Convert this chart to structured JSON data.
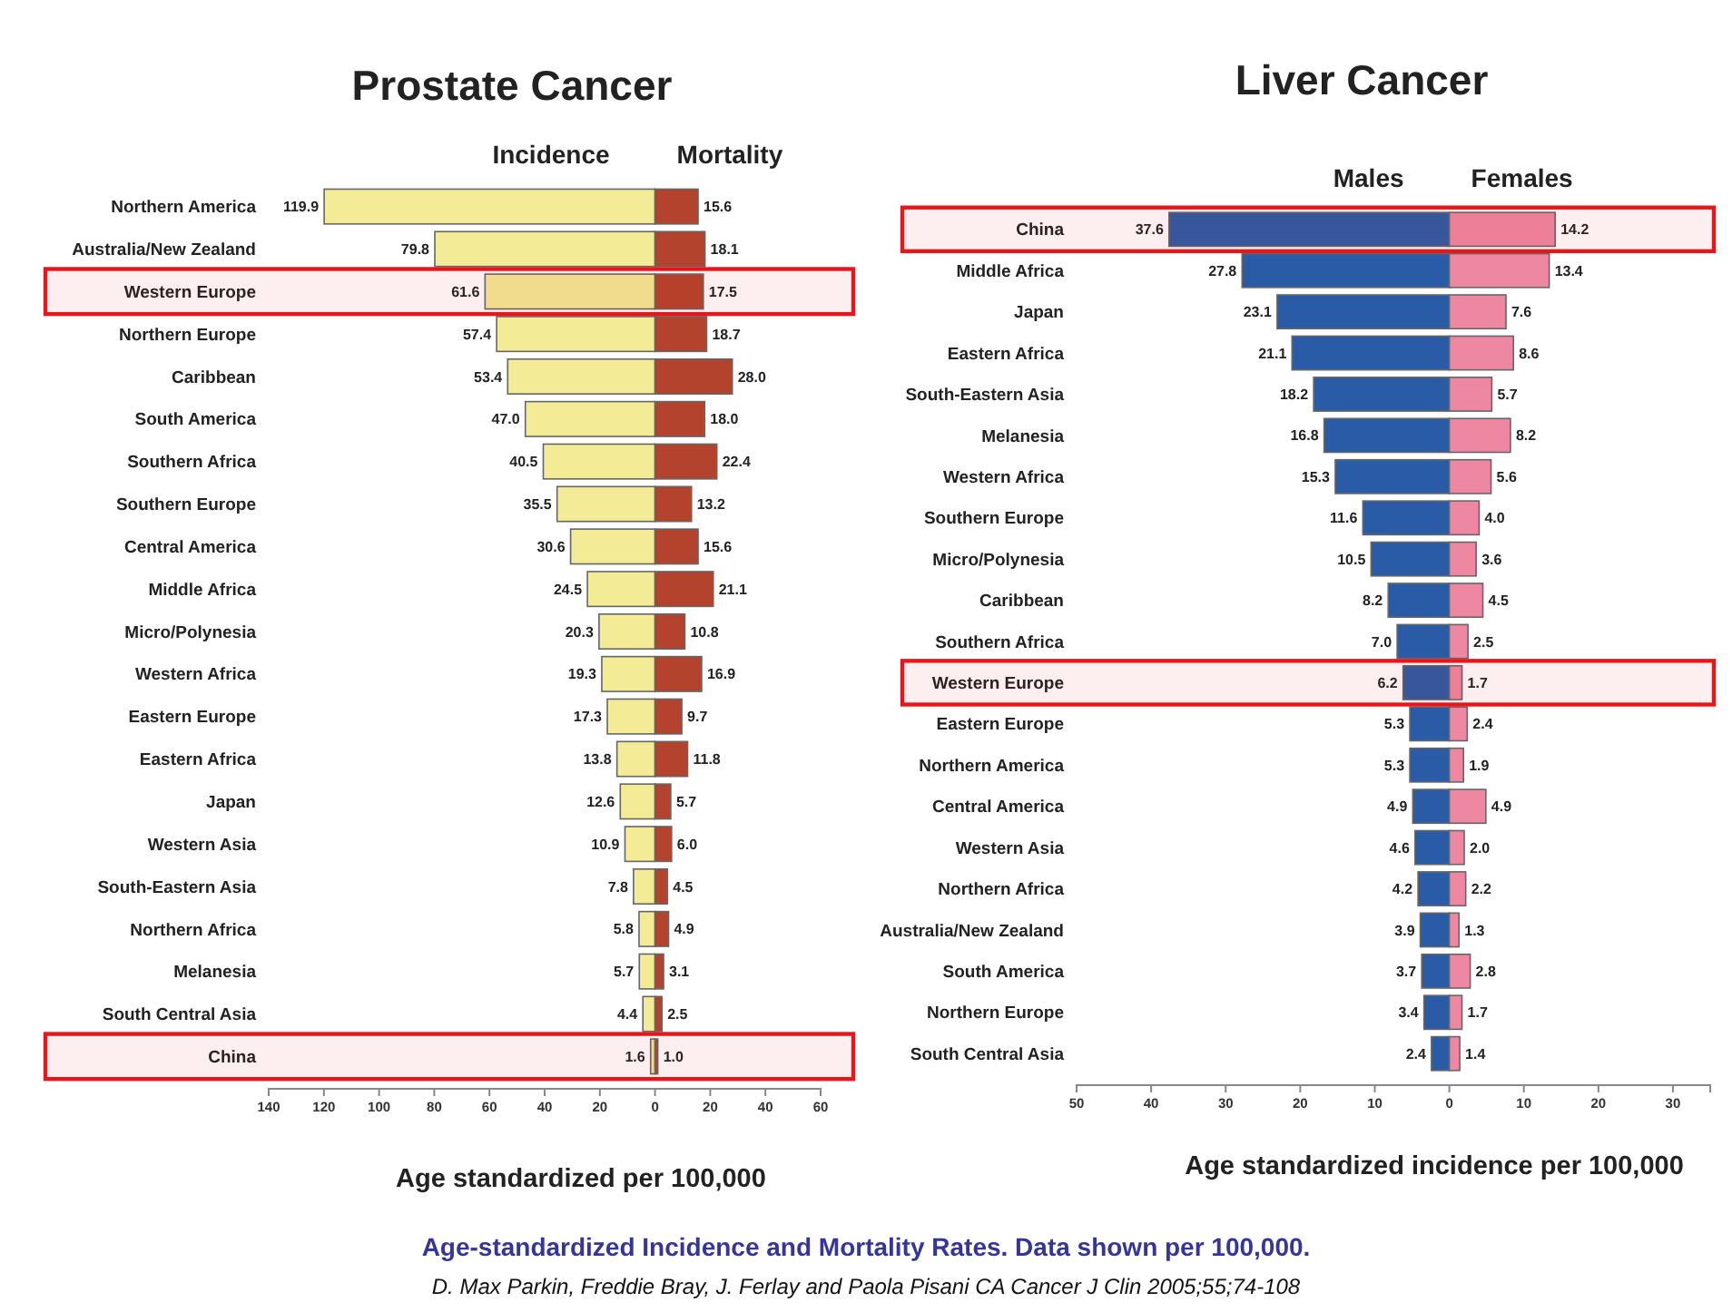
{
  "chart_data": [
    {
      "type": "bar",
      "orientation": "horizontal",
      "title": "Prostate Cancer",
      "xlabel": "Age standardized per 100,000",
      "categories": [
        "Northern America",
        "Australia/New Zealand",
        "Western Europe",
        "Northern Europe",
        "Caribbean",
        "South America",
        "Southern Africa",
        "Southern Europe",
        "Central America",
        "Middle Africa",
        "Micro/Polynesia",
        "Western Africa",
        "Eastern Europe",
        "Eastern Africa",
        "Japan",
        "Western Asia",
        "South-Eastern Asia",
        "Northern Africa",
        "Melanesia",
        "South Central Asia",
        "China"
      ],
      "series": [
        {
          "name": "Incidence",
          "color": "#f3eb96",
          "base": [
            -119.9,
            -79.8,
            -61.6,
            -57.4,
            -53.4,
            -47.0,
            -40.5,
            -35.5,
            -30.6,
            -24.5,
            -20.3,
            -19.3,
            -17.3,
            -13.8,
            -12.6,
            -10.9,
            -7.8,
            -5.8,
            -5.7,
            -4.4,
            -1.6
          ],
          "values": [
            119.9,
            79.8,
            61.6,
            57.4,
            53.4,
            47.0,
            40.5,
            35.5,
            30.6,
            24.5,
            20.3,
            19.3,
            17.3,
            13.8,
            12.6,
            10.9,
            7.8,
            5.8,
            5.7,
            4.4,
            1.6
          ],
          "value_labels": [
            "119.9",
            "79.8",
            "61.6",
            "57.4",
            "53.4",
            "47.0",
            "40.5",
            "35.5",
            "30.6",
            "24.5",
            "20.3",
            "19.3",
            "17.3",
            "13.8",
            "12.6",
            "10.9",
            "7.8",
            "5.8",
            "5.7",
            "4.4",
            "1.6"
          ]
        },
        {
          "name": "Mortality",
          "color": "#b3432c",
          "values": [
            15.6,
            18.1,
            17.5,
            18.7,
            28.0,
            18.0,
            22.4,
            13.2,
            15.6,
            21.1,
            10.8,
            16.9,
            9.7,
            11.8,
            5.7,
            6.0,
            4.5,
            4.9,
            3.1,
            2.5,
            1.0
          ],
          "value_labels": [
            "15.6",
            "18.1",
            "17.5",
            "18.7",
            "28.0",
            "18.0",
            "22.4",
            "13.2",
            "15.6",
            "21.1",
            "10.8",
            "16.9",
            "9.7",
            "11.8",
            "5.7",
            "6.0",
            "4.5",
            "4.9",
            "3.1",
            "2.5",
            "1.0"
          ]
        }
      ],
      "xlim": [
        -140,
        60
      ],
      "xticks": [
        {
          "value": -140,
          "label": "140"
        },
        {
          "value": -120,
          "label": "120"
        },
        {
          "value": -100,
          "label": "100"
        },
        {
          "value": -80,
          "label": "80"
        },
        {
          "value": -60,
          "label": "60"
        },
        {
          "value": -40,
          "label": "40"
        },
        {
          "value": -20,
          "label": "20"
        },
        0,
        20,
        40,
        60
      ],
      "bands": [
        {
          "axis": "y",
          "from": "Western Europe",
          "to": "Western Europe",
          "color": "#e8161b"
        },
        {
          "axis": "y",
          "from": "China",
          "to": "China",
          "color": "#e8161b"
        }
      ],
      "annotations": [
        "Age-standardized Incidence and Mortality Rates. Data shown per 100,000.",
        "D. Max Parkin, Freddie Bray, J. Ferlay and Paola Pisani CA Cancer J Clin 2005;55;74-108"
      ]
    },
    {
      "type": "bar",
      "orientation": "horizontal",
      "title": "Liver Cancer",
      "xlabel": "Age standardized incidence per 100,000",
      "categories": [
        "China",
        "Middle Africa",
        "Japan",
        "Eastern Africa",
        "South-Eastern Asia",
        "Melanesia",
        "Western Africa",
        "Southern Europe",
        "Micro/Polynesia",
        "Caribbean",
        "Southern Africa",
        "Western Europe",
        "Eastern Europe",
        "Northern America",
        "Central America",
        "Western Asia",
        "Northern Africa",
        "Australia/New Zealand",
        "South America",
        "Northern Europe",
        "South Central Asia"
      ],
      "series": [
        {
          "name": "Males",
          "color": "#2a5ba6",
          "base": [
            -37.6,
            -27.8,
            -23.1,
            -21.1,
            -18.2,
            -16.8,
            -15.3,
            -11.6,
            -10.5,
            -8.2,
            -7.0,
            -6.2,
            -5.3,
            -5.3,
            -4.9,
            -4.6,
            -4.2,
            -3.9,
            -3.7,
            -3.4,
            -2.4
          ],
          "values": [
            37.6,
            27.8,
            23.1,
            21.1,
            18.2,
            16.8,
            15.3,
            11.6,
            10.5,
            8.2,
            7.0,
            6.2,
            5.3,
            5.3,
            4.9,
            4.6,
            4.2,
            3.9,
            3.7,
            3.4,
            2.4
          ],
          "value_labels": [
            "37.6",
            "27.8",
            "23.1",
            "21.1",
            "18.2",
            "16.8",
            "15.3",
            "11.6",
            "10.5",
            "8.2",
            "7.0",
            "6.2",
            "5.3",
            "5.3",
            "4.9",
            "4.6",
            "4.2",
            "3.9",
            "3.7",
            "3.4",
            "2.4"
          ]
        },
        {
          "name": "Females",
          "color": "#ee87a2",
          "values": [
            14.2,
            13.4,
            7.6,
            8.6,
            5.7,
            8.2,
            5.6,
            4.0,
            3.6,
            4.5,
            2.5,
            1.7,
            2.4,
            1.9,
            4.9,
            2.0,
            2.2,
            1.3,
            2.8,
            1.7,
            1.4
          ],
          "value_labels": [
            "14.2",
            "13.4",
            "7.6",
            "8.6",
            "5.7",
            "8.2",
            "5.6",
            "4.0",
            "3.6",
            "4.5",
            "2.5",
            "1.7",
            "2.4",
            "1.9",
            "4.9",
            "2.0",
            "2.2",
            "1.3",
            "2.8",
            "1.7",
            "1.4"
          ]
        }
      ],
      "xlim": [
        -50,
        35
      ],
      "xticks": [
        {
          "value": -50,
          "label": "50"
        },
        {
          "value": -40,
          "label": "40"
        },
        {
          "value": -30,
          "label": "30"
        },
        {
          "value": -20,
          "label": "20"
        },
        {
          "value": -10,
          "label": "10"
        },
        0,
        10,
        20,
        30
      ],
      "bands": [
        {
          "axis": "y",
          "from": "China",
          "to": "China",
          "color": "#e8161b"
        },
        {
          "axis": "y",
          "from": "Western Europe",
          "to": "Western Europe",
          "color": "#e8161b"
        }
      ]
    }
  ]
}
